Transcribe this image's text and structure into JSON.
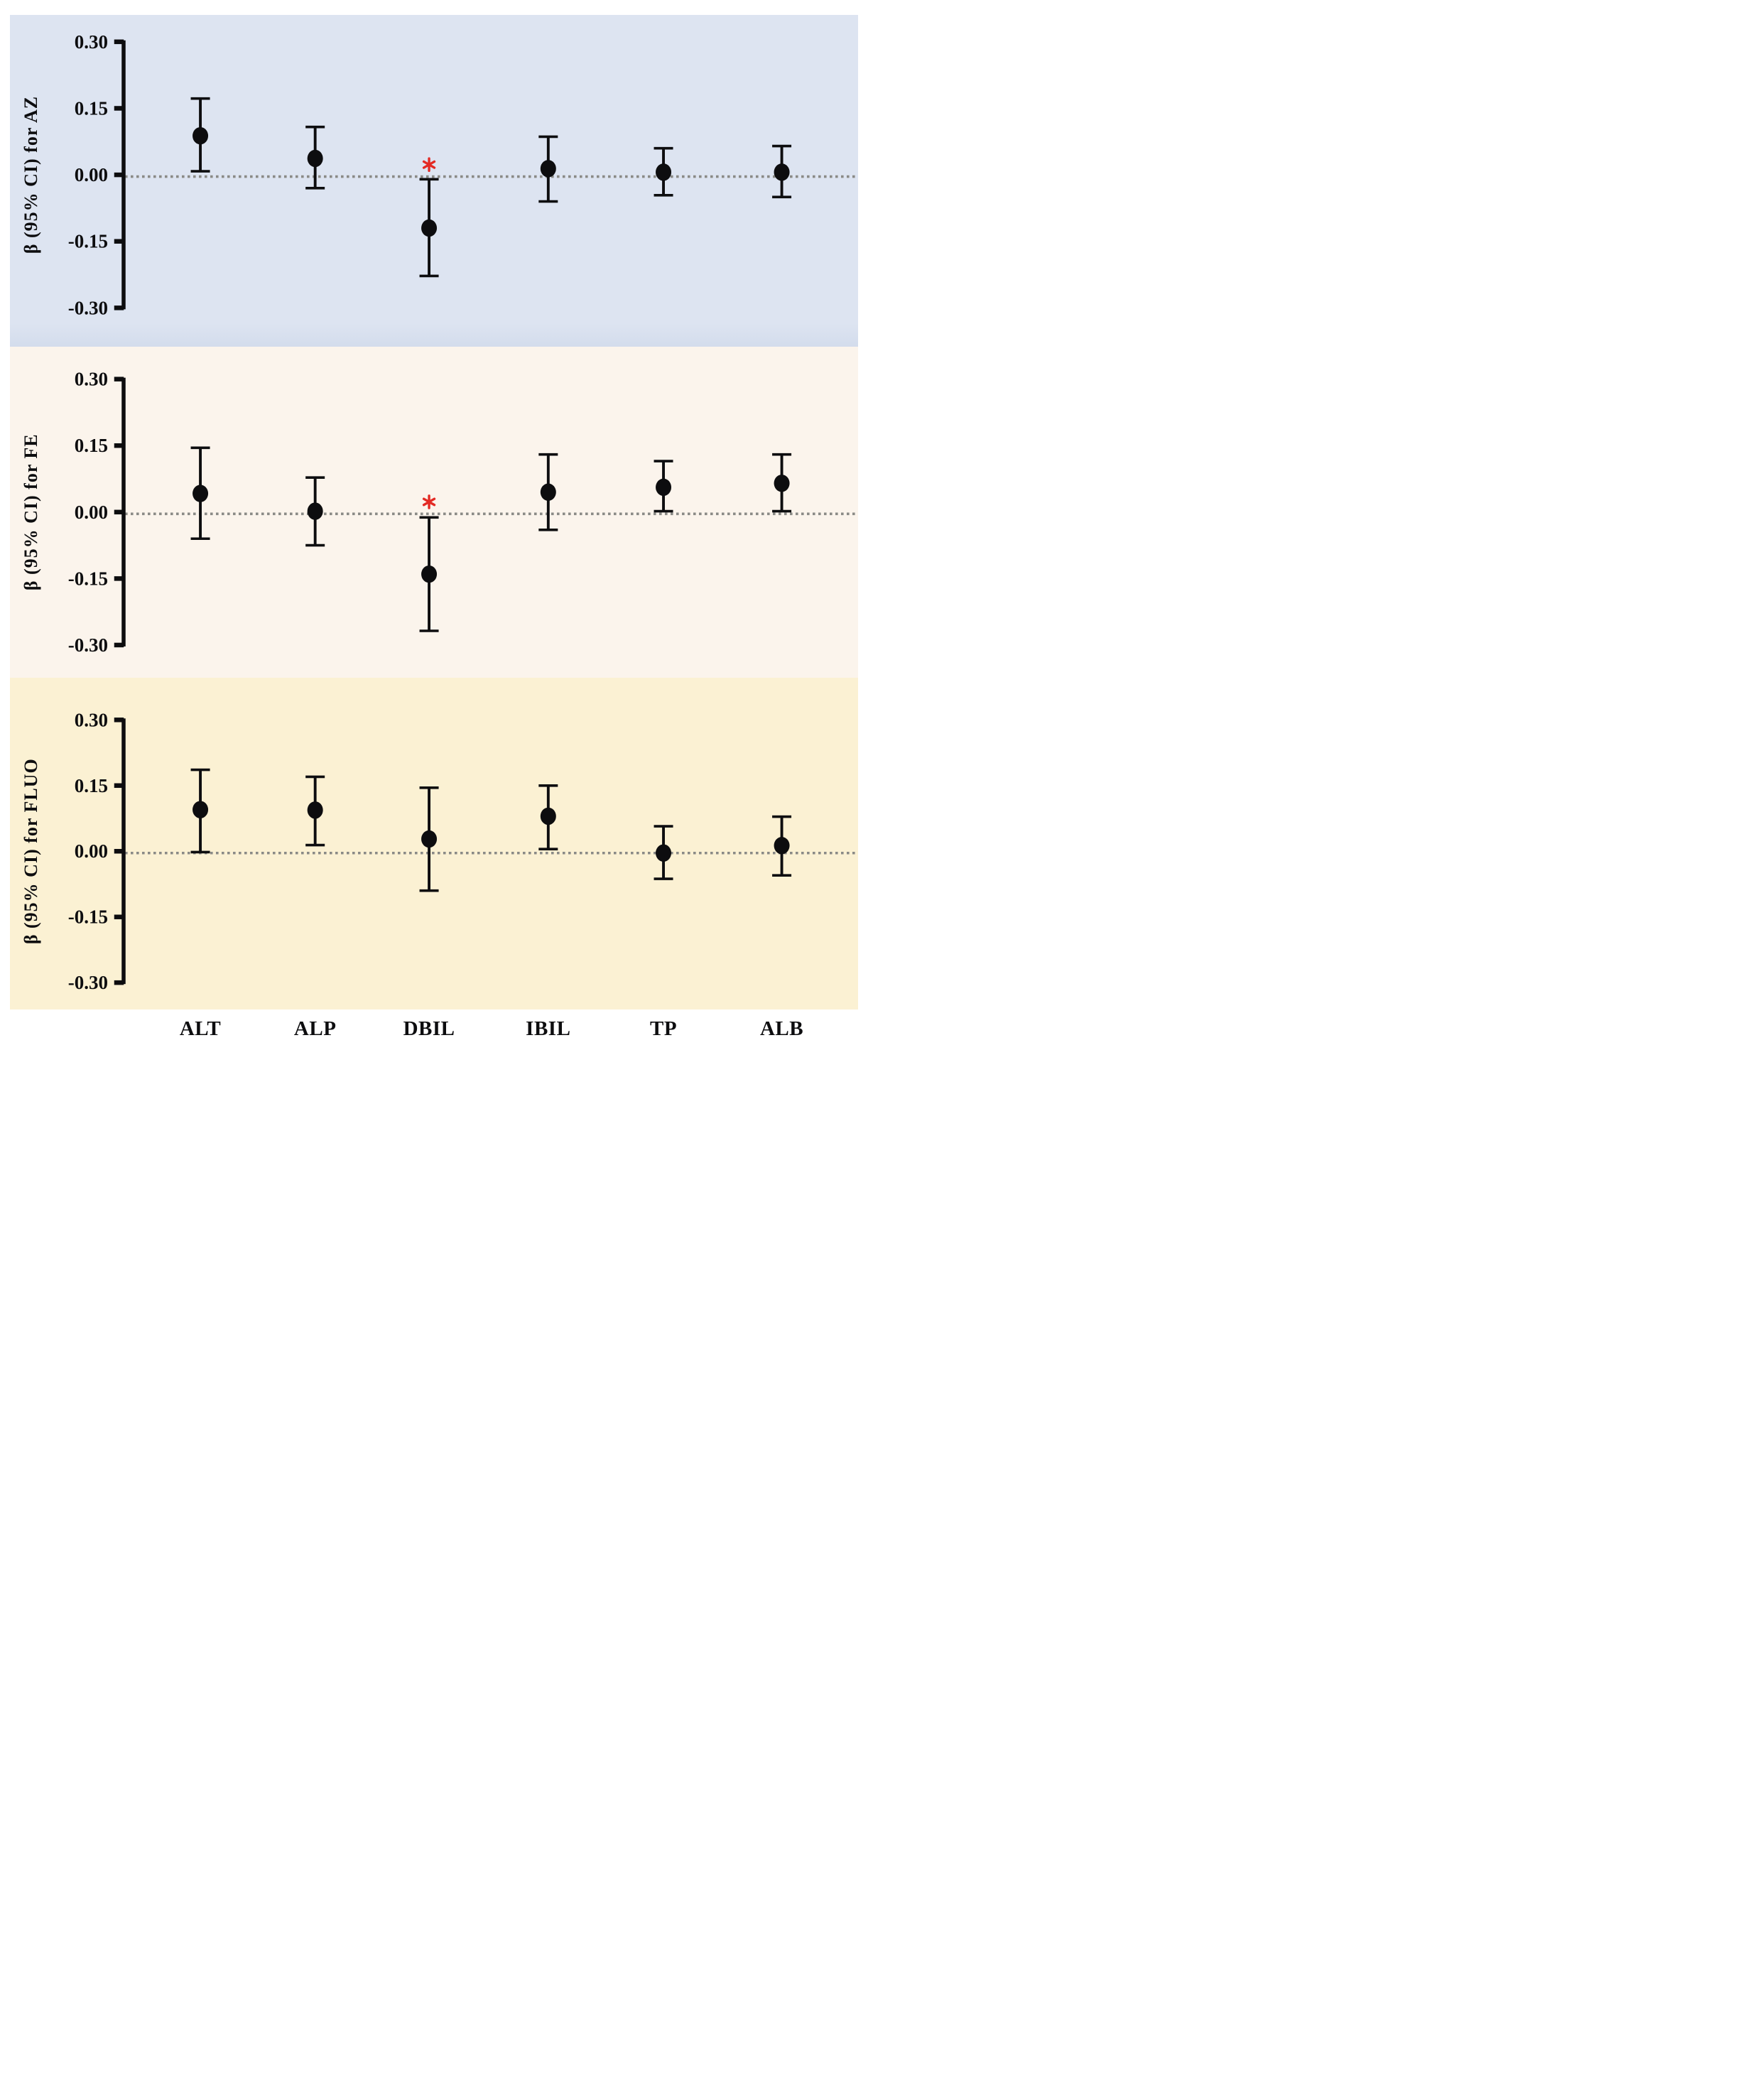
{
  "figure": {
    "type": "forest-plot-three-panels",
    "x_axis_categories": [
      "ALT",
      "ALP",
      "DBIL",
      "IBIL",
      "TP",
      "ALB"
    ],
    "y_tick_labels": [
      "0.30",
      "0.15",
      "0.00",
      "-0.15",
      "-0.30"
    ],
    "significance_marker": "*",
    "colors": {
      "panel_az_bg": "#dde4f1",
      "panel_az_bg_edge": "#d3dcec",
      "panel_fe_bg": "#fbf4ec",
      "panel_fluo_bg": "#fbf1d3",
      "ink": "#0d0d0f",
      "zero_line": "#8a8a86",
      "significance": "#e32a24",
      "page_bg": "#ffffff"
    }
  },
  "chart_data": [
    {
      "type": "scatter",
      "subtype": "point-estimate-with-95ci-errorbars",
      "title": "",
      "xlabel": "",
      "ylabel": "β (95% CI) for AZ",
      "categories": [
        "ALT",
        "ALP",
        "DBIL",
        "IBIL",
        "TP",
        "ALB"
      ],
      "series": [
        {
          "name": "beta",
          "values": [
            0.088,
            0.037,
            -0.12,
            0.014,
            0.006,
            0.006
          ]
        },
        {
          "name": "ci_low",
          "values": [
            0.008,
            -0.03,
            -0.228,
            -0.06,
            -0.046,
            -0.05
          ]
        },
        {
          "name": "ci_high",
          "values": [
            0.172,
            0.108,
            -0.01,
            0.086,
            0.06,
            0.065
          ]
        }
      ],
      "significant_categories": [
        "DBIL"
      ],
      "y_ticks": [
        0.3,
        0.15,
        0.0,
        -0.15,
        -0.3
      ],
      "ylim": [
        -0.33,
        0.35
      ],
      "zero_reference_line": true,
      "grid": false,
      "legend": false
    },
    {
      "type": "scatter",
      "subtype": "point-estimate-with-95ci-errorbars",
      "title": "",
      "xlabel": "",
      "ylabel": "β (95% CI) for FE",
      "categories": [
        "ALT",
        "ALP",
        "DBIL",
        "IBIL",
        "TP",
        "ALB"
      ],
      "series": [
        {
          "name": "beta",
          "values": [
            0.042,
            0.002,
            -0.14,
            0.045,
            0.056,
            0.065
          ]
        },
        {
          "name": "ci_low",
          "values": [
            -0.06,
            -0.075,
            -0.268,
            -0.04,
            0.002,
            0.002
          ]
        },
        {
          "name": "ci_high",
          "values": [
            0.145,
            0.078,
            -0.012,
            0.13,
            0.115,
            0.13
          ]
        }
      ],
      "significant_categories": [
        "DBIL"
      ],
      "y_ticks": [
        0.3,
        0.15,
        0.0,
        -0.15,
        -0.3
      ],
      "ylim": [
        -0.33,
        0.35
      ],
      "zero_reference_line": true,
      "grid": false,
      "legend": false
    },
    {
      "type": "scatter",
      "subtype": "point-estimate-with-95ci-errorbars",
      "title": "",
      "xlabel": "",
      "ylabel": "β (95% CI) for FLUO",
      "categories": [
        "ALT",
        "ALP",
        "DBIL",
        "IBIL",
        "TP",
        "ALB"
      ],
      "series": [
        {
          "name": "beta",
          "values": [
            0.095,
            0.094,
            0.028,
            0.08,
            -0.004,
            0.013
          ]
        },
        {
          "name": "ci_low",
          "values": [
            -0.002,
            0.014,
            -0.09,
            0.005,
            -0.063,
            -0.055
          ]
        },
        {
          "name": "ci_high",
          "values": [
            0.186,
            0.17,
            0.145,
            0.15,
            0.057,
            0.079
          ]
        }
      ],
      "significant_categories": [],
      "y_ticks": [
        0.3,
        0.15,
        0.0,
        -0.15,
        -0.3
      ],
      "ylim": [
        -0.33,
        0.35
      ],
      "zero_reference_line": true,
      "grid": false,
      "legend": false
    }
  ]
}
